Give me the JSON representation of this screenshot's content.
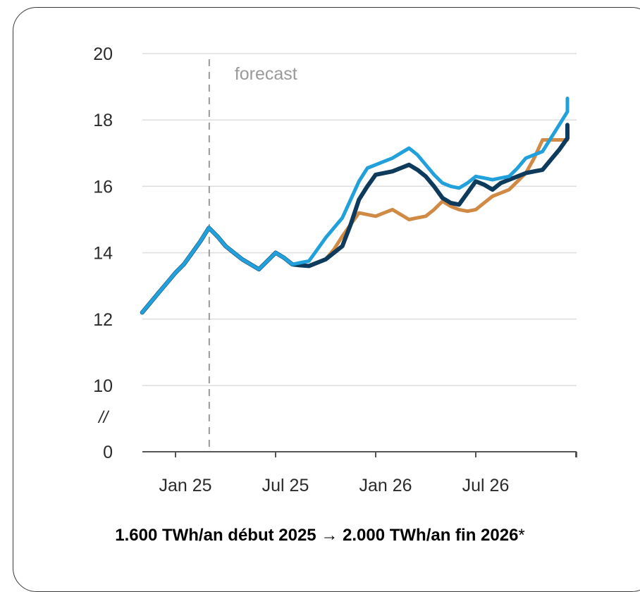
{
  "chart_data": {
    "type": "line",
    "title": "",
    "xlabel": "",
    "ylabel": "",
    "ylim": [
      0,
      20
    ],
    "yticks": [
      0,
      10,
      12,
      14,
      16,
      18,
      20
    ],
    "y_axis_break": "//",
    "grid": true,
    "x_tick_labels": [
      "Jan 25",
      "Jul 25",
      "Jan 26",
      "Jul 26"
    ],
    "x_tick_months": [
      0,
      6,
      12,
      18
    ],
    "forecast_marker": {
      "month": 0.5,
      "label": "forecast"
    },
    "x_months": [
      -2,
      -1.5,
      -1,
      -0.5,
      0,
      0.5,
      1,
      1.5,
      2,
      2.5,
      3,
      3.5,
      4,
      4.5,
      5,
      5.5,
      6,
      6.5,
      7,
      7.5,
      8,
      8.5,
      9,
      9.5,
      10,
      10.5,
      11,
      11.5,
      12,
      12.5,
      13,
      13.5,
      14,
      14.5,
      15,
      15.5,
      16,
      16.5,
      17,
      17.5,
      18,
      18.5,
      19,
      19.5,
      20,
      20.5,
      21,
      21.5,
      22,
      22.5,
      23,
      23.5,
      24
    ],
    "series": [
      {
        "color": "#d08a45",
        "values": [
          12.2,
          12.5,
          12.8,
          13.1,
          13.4,
          13.65,
          14.0,
          14.35,
          14.75,
          14.5,
          14.2,
          14.0,
          13.8,
          13.65,
          13.5,
          13.75,
          14.0,
          13.85,
          13.65,
          13.62,
          13.6,
          13.7,
          13.8,
          14.1,
          14.5,
          14.85,
          15.2,
          15.15,
          15.1,
          15.2,
          15.3,
          15.15,
          15.0,
          15.05,
          15.1,
          15.3,
          15.55,
          15.4,
          15.3,
          15.25,
          15.3,
          15.5,
          15.7,
          15.8,
          15.9,
          16.15,
          16.4,
          16.85,
          17.4,
          17.4,
          17.4,
          17.4,
          17.4
        ]
      },
      {
        "color": "#0e3a5b",
        "values": [
          12.2,
          12.5,
          12.8,
          13.1,
          13.4,
          13.65,
          14.0,
          14.35,
          14.75,
          14.5,
          14.2,
          14.0,
          13.8,
          13.65,
          13.5,
          13.75,
          14.0,
          13.85,
          13.65,
          13.62,
          13.6,
          13.7,
          13.8,
          14.0,
          14.2,
          14.85,
          15.6,
          16.0,
          16.35,
          16.4,
          16.45,
          16.55,
          16.65,
          16.5,
          16.3,
          16.0,
          15.65,
          15.5,
          15.45,
          15.8,
          16.15,
          16.05,
          15.9,
          16.1,
          16.2,
          16.3,
          16.4,
          16.45,
          16.5,
          16.8,
          17.1,
          17.45,
          17.85
        ]
      },
      {
        "color": "#22a0db",
        "values": [
          12.2,
          12.5,
          12.8,
          13.1,
          13.4,
          13.65,
          14.0,
          14.35,
          14.75,
          14.5,
          14.2,
          14.0,
          13.8,
          13.65,
          13.5,
          13.75,
          14.0,
          13.85,
          13.65,
          13.7,
          13.75,
          14.1,
          14.45,
          14.75,
          15.05,
          15.6,
          16.15,
          16.55,
          16.65,
          16.75,
          16.85,
          17.0,
          17.15,
          16.95,
          16.65,
          16.35,
          16.1,
          16.0,
          15.95,
          16.1,
          16.3,
          16.25,
          16.2,
          16.25,
          16.3,
          16.55,
          16.85,
          16.95,
          17.05,
          17.45,
          17.85,
          18.25,
          18.65
        ]
      }
    ]
  },
  "caption": {
    "text": "1.600 TWh/an début 2025 → 2.000 TWh/an fin 2026",
    "footnote_mark": "*"
  }
}
